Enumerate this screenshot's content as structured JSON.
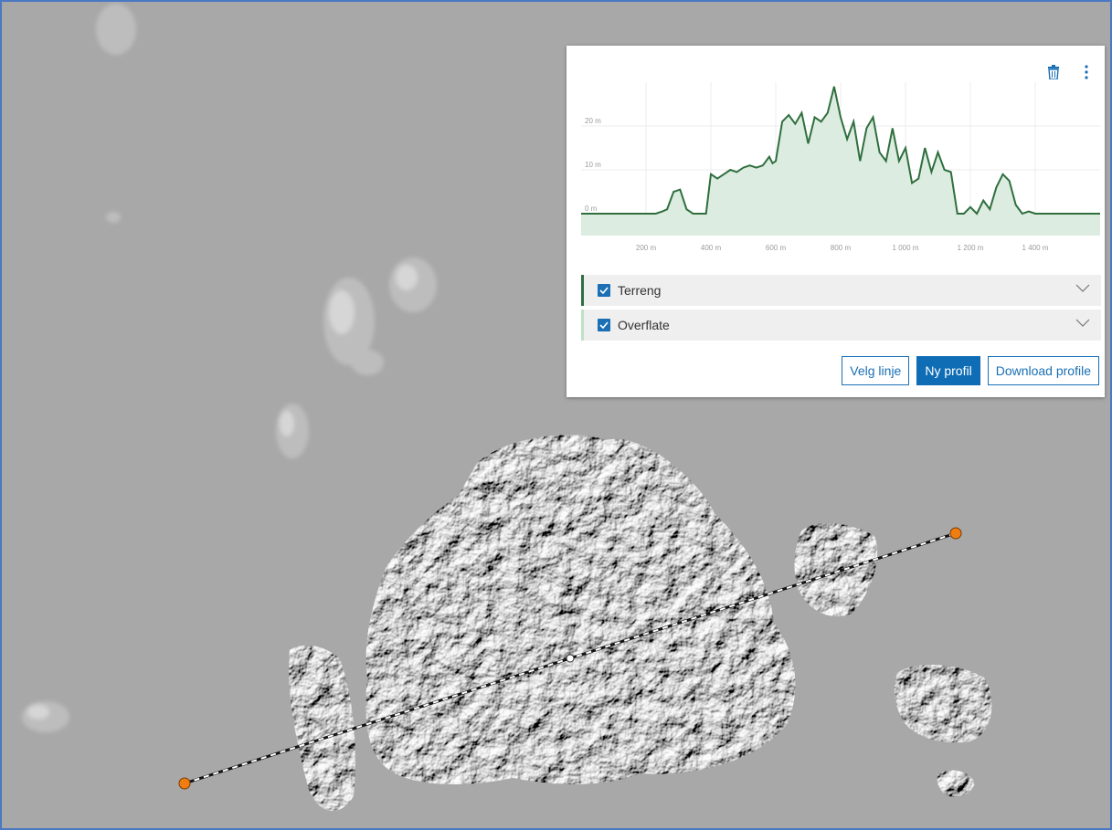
{
  "colors": {
    "terrain": "#2f6f3e",
    "fill": "#dcece0",
    "accent": "#0f6db5",
    "marker": "#f07d10",
    "frame": "#4a78c2"
  },
  "panel": {
    "icons": {
      "delete": "trash-icon",
      "more": "kebab-menu-icon"
    },
    "layers": [
      {
        "label": "Terreng",
        "checked": true
      },
      {
        "label": "Overflate",
        "checked": true
      }
    ],
    "buttons": {
      "select_line": "Velg linje",
      "new_profile": "Ny profil",
      "download": "Download profile"
    }
  },
  "chart_data": {
    "type": "area",
    "y_ticks": [
      {
        "value": 0,
        "label": "0 m"
      },
      {
        "value": 10,
        "label": "10 m"
      },
      {
        "value": 20,
        "label": "20 m"
      }
    ],
    "x_ticks": [
      {
        "value": 200,
        "label": "200 m"
      },
      {
        "value": 400,
        "label": "400 m"
      },
      {
        "value": 600,
        "label": "600 m"
      },
      {
        "value": 800,
        "label": "800 m"
      },
      {
        "value": 1000,
        "label": "1 000 m"
      },
      {
        "value": 1200,
        "label": "1 200 m"
      },
      {
        "value": 1400,
        "label": "1 400 m"
      }
    ],
    "xlim": [
      0,
      1600
    ],
    "ylim": [
      -5,
      30
    ],
    "grid": true,
    "series": [
      {
        "x": [
          0,
          150,
          200,
          230,
          250,
          265,
          285,
          305,
          325,
          345,
          360,
          370,
          385,
          400,
          420,
          440,
          460,
          480,
          500,
          520,
          540,
          560,
          580,
          590,
          600,
          620,
          640,
          660,
          680,
          700,
          720,
          740,
          760,
          780,
          800,
          820,
          840,
          860,
          880,
          900,
          920,
          940,
          960,
          980,
          1000,
          1020,
          1040,
          1060,
          1080,
          1100,
          1120,
          1140,
          1160,
          1180,
          1200,
          1220,
          1240,
          1260,
          1280,
          1300,
          1320,
          1340,
          1360,
          1380,
          1400,
          1420,
          1450,
          1500,
          1600
        ],
        "y": [
          0,
          0,
          0,
          0,
          0.5,
          1,
          5,
          5.5,
          1,
          0,
          0,
          0,
          0,
          9,
          8,
          9,
          10,
          9.5,
          10.5,
          11,
          10.5,
          11,
          13,
          11.5,
          12,
          21,
          22.5,
          20.5,
          23,
          16,
          22,
          21,
          23,
          29,
          22,
          17,
          21,
          12,
          19.5,
          22,
          14,
          12,
          19.5,
          12,
          15,
          7,
          8,
          15,
          9.5,
          14,
          10,
          9.5,
          0,
          0,
          1.5,
          0,
          3,
          1,
          6,
          9,
          7.5,
          2,
          0,
          0.5,
          0,
          0,
          0,
          0,
          0
        ]
      }
    ]
  }
}
